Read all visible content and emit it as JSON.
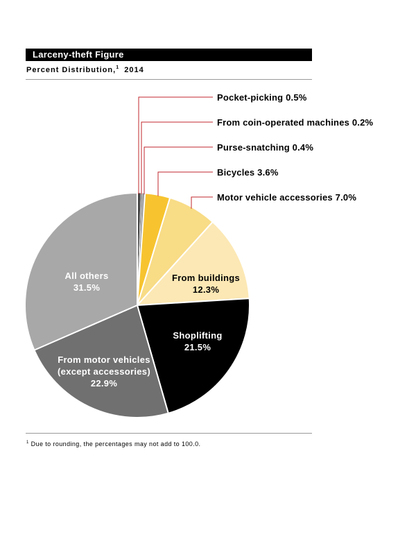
{
  "header": {
    "title": "Larceny-theft Figure",
    "subtitle": "Percent Distribution,",
    "subtitle_footnote_mark": "1",
    "year": "2014"
  },
  "footnote": {
    "mark": "1",
    "text": "Due to rounding, the percentages may not add to 100.0."
  },
  "chart_data": {
    "type": "pie",
    "start_angle_deg": 0,
    "direction": "clockwise",
    "slices": [
      {
        "label": "Pocket-picking",
        "value": 0.5,
        "value_label": "0.5%",
        "color": "#444444",
        "label_style": "callout"
      },
      {
        "label": "From coin-operated machines",
        "value": 0.2,
        "value_label": "0.2%",
        "color": "#666666",
        "label_style": "callout"
      },
      {
        "label": "Purse-snatching",
        "value": 0.4,
        "value_label": "0.4%",
        "color": "#999999",
        "label_style": "callout"
      },
      {
        "label": "Bicycles",
        "value": 3.6,
        "value_label": "3.6%",
        "color": "#f7c430",
        "label_style": "callout"
      },
      {
        "label": "Motor vehicle accessories",
        "value": 7.0,
        "value_label": "7.0%",
        "color": "#f8dc86",
        "label_style": "callout"
      },
      {
        "label": "From buildings",
        "value": 12.3,
        "value_label": "12.3%",
        "color": "#fce8b4",
        "label_style": "inside",
        "text_color": "#000000"
      },
      {
        "label": "Shoplifting",
        "value": 21.5,
        "value_label": "21.5%",
        "color": "#000000",
        "label_style": "inside",
        "text_color": "#ffffff"
      },
      {
        "label": "From motor vehicles (except accessories)",
        "value_lines": [
          "From motor vehicles",
          "(except accessories)"
        ],
        "value": 22.9,
        "value_label": "22.9%",
        "color": "#707070",
        "label_style": "inside",
        "text_color": "#ffffff"
      },
      {
        "label": "All others",
        "value": 31.5,
        "value_label": "31.5%",
        "color": "#a8a8a8",
        "label_style": "inside",
        "text_color": "#ffffff"
      }
    ],
    "leader_color": "#c0272d"
  }
}
